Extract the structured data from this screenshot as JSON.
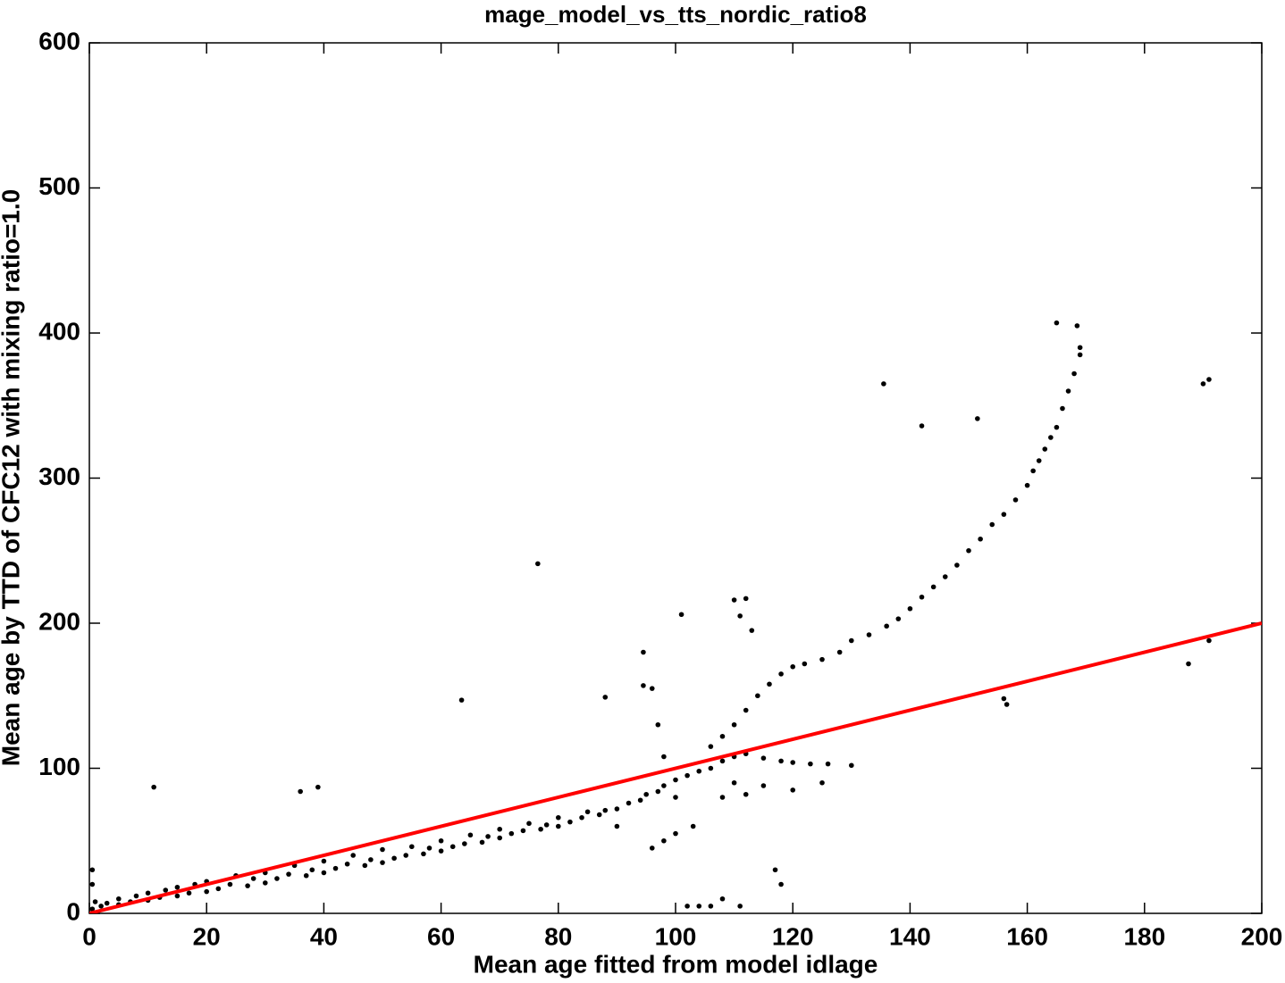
{
  "chart_data": {
    "type": "scatter",
    "title": "mage_model_vs_tts_nordic_ratio8",
    "xlabel": "Mean age fitted from model idlage",
    "ylabel": "Mean age by TTD of CFC12 with mixing ratio=1.0",
    "xlim": [
      0,
      200
    ],
    "ylim": [
      0,
      600
    ],
    "xticks": [
      0,
      20,
      40,
      60,
      80,
      100,
      120,
      140,
      160,
      180,
      200
    ],
    "yticks": [
      0,
      100,
      200,
      300,
      400,
      500,
      600
    ],
    "series": [
      {
        "color": "#000000",
        "x": [
          0.5,
          0.5,
          0.5,
          1,
          2,
          3,
          5,
          5,
          7,
          8,
          10,
          10,
          12,
          13,
          15,
          15,
          17,
          18,
          20,
          20,
          22,
          24,
          25,
          27,
          28,
          30,
          30,
          32,
          34,
          35,
          37,
          38,
          40,
          40,
          42,
          44,
          45,
          47,
          48,
          50,
          50,
          52,
          54,
          55,
          57,
          58,
          60,
          60,
          62,
          64,
          65,
          67,
          68,
          70,
          70,
          72,
          74,
          75,
          77,
          78,
          80,
          80,
          82,
          84,
          85,
          87,
          88,
          90,
          90,
          92,
          94,
          95,
          97,
          98,
          100,
          100,
          102,
          104,
          96,
          98,
          100,
          103,
          106,
          108,
          110,
          112,
          115,
          118,
          120,
          123,
          126,
          130,
          110,
          115,
          120,
          125,
          108,
          112,
          106,
          108,
          110,
          112,
          114,
          116,
          118,
          120,
          122,
          125,
          128,
          130,
          133,
          136,
          138,
          140,
          142,
          144,
          146,
          148,
          150,
          152,
          154,
          156,
          158,
          160,
          161,
          162,
          163,
          164,
          165,
          166,
          167,
          168,
          169,
          169,
          76.5,
          101,
          135.5,
          142,
          151.5,
          165,
          168.5,
          190,
          191,
          187.5,
          191,
          156,
          156.5,
          11,
          39,
          36,
          63.5,
          88,
          94.5,
          94.5,
          96,
          110,
          112,
          111,
          113,
          97,
          98,
          108,
          111,
          117,
          118,
          102,
          104,
          106
        ],
        "values": [
          3,
          20,
          30,
          8,
          5,
          7,
          6,
          10,
          8,
          12,
          9,
          14,
          11,
          16,
          12,
          18,
          14,
          20,
          15,
          22,
          17,
          20,
          26,
          19,
          24,
          21,
          28,
          24,
          27,
          33,
          26,
          30,
          28,
          36,
          31,
          34,
          40,
          33,
          37,
          35,
          44,
          38,
          40,
          46,
          41,
          45,
          43,
          50,
          46,
          48,
          54,
          49,
          53,
          52,
          58,
          55,
          57,
          62,
          58,
          61,
          60,
          66,
          63,
          66,
          70,
          68,
          71,
          72,
          60,
          76,
          78,
          82,
          84,
          88,
          92,
          80,
          95,
          98,
          45,
          50,
          55,
          60,
          100,
          105,
          108,
          110,
          107,
          105,
          104,
          103,
          103,
          102,
          90,
          88,
          85,
          90,
          80,
          82,
          115,
          122,
          130,
          140,
          150,
          158,
          165,
          170,
          172,
          175,
          180,
          188,
          192,
          198,
          203,
          210,
          218,
          225,
          232,
          240,
          250,
          258,
          268,
          275,
          285,
          295,
          305,
          312,
          320,
          328,
          335,
          348,
          360,
          372,
          385,
          390,
          241,
          206,
          365,
          336,
          341,
          407,
          405,
          365,
          368,
          172,
          188,
          148,
          144,
          87,
          87,
          84,
          147,
          149,
          180,
          157,
          155,
          216,
          217,
          205,
          195,
          130,
          108,
          10,
          5,
          30,
          20,
          5,
          5,
          5
        ]
      },
      {
        "color": "#ff0000",
        "type": "line",
        "x": [
          0,
          200
        ],
        "values": [
          0,
          200
        ]
      }
    ]
  }
}
